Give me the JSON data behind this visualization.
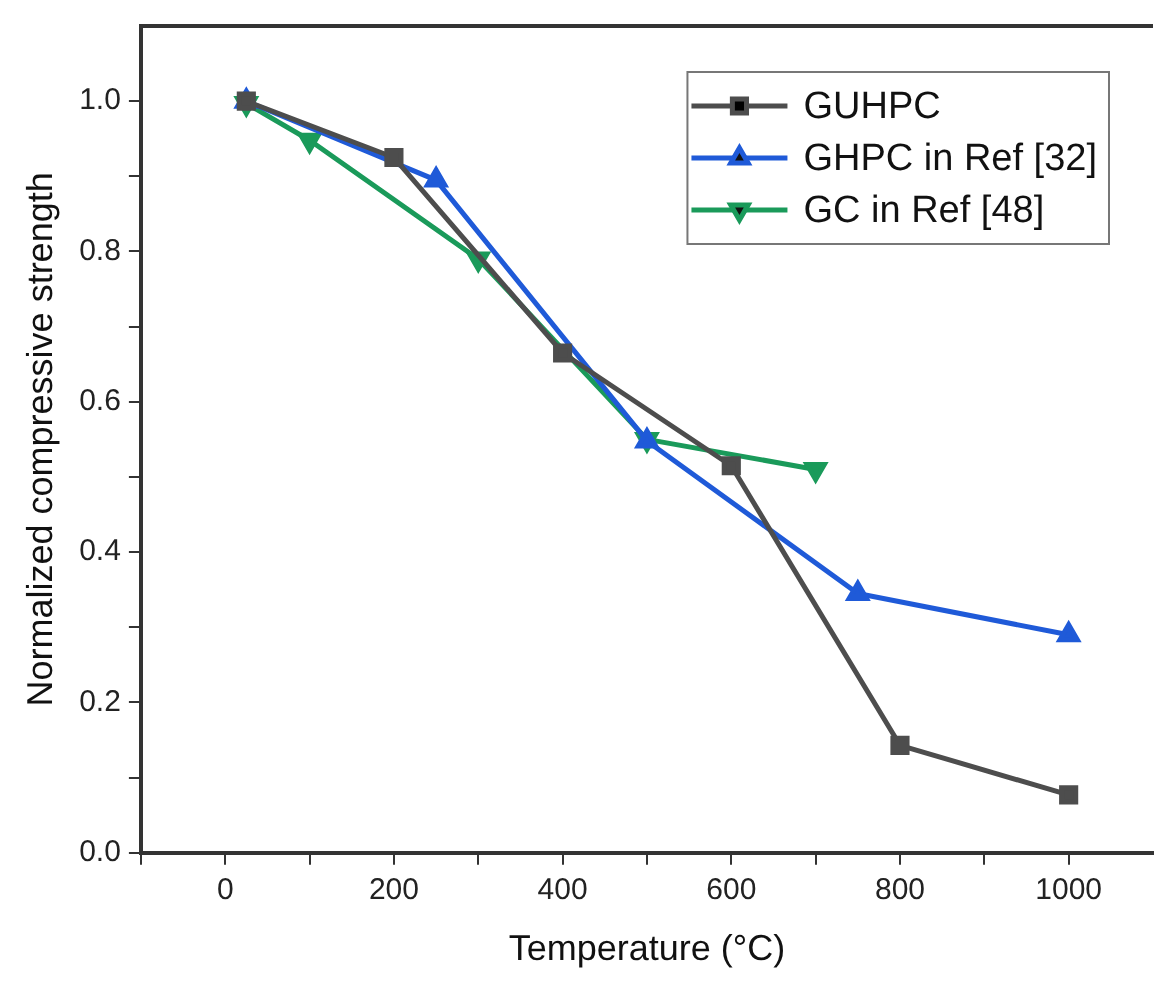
{
  "chart_data": {
    "type": "line",
    "xlabel": "Temperature (°C)",
    "ylabel": "Normalized compressive strength",
    "xlim": [
      -100,
      1100
    ],
    "ylim": [
      0,
      1.1
    ],
    "xticks": [
      {
        "value": -100,
        "label": null
      },
      0,
      {
        "value": 100,
        "label": null
      },
      200,
      {
        "value": 300,
        "label": null
      },
      400,
      {
        "value": 500,
        "label": null
      },
      600,
      {
        "value": 700,
        "label": null
      },
      800,
      {
        "value": 900,
        "label": null
      },
      1000
    ],
    "yticks": [
      "0.0",
      {
        "value": 0.1,
        "label": null
      },
      0.2,
      {
        "value": 0.3,
        "label": null
      },
      0.4,
      {
        "value": 0.5,
        "label": null
      },
      0.6,
      {
        "value": 0.7,
        "label": null
      },
      0.8,
      {
        "value": 0.9,
        "label": null
      },
      {
        "value": 1,
        "label": "1.0"
      }
    ],
    "grid": false,
    "legend": "top right",
    "line_style": "solid",
    "series": [
      {
        "name": "GUHPC",
        "color": "#4d4d4d",
        "marker": "square",
        "x": [
          25,
          200,
          400,
          600,
          800,
          1000
        ],
        "values": [
          1.0,
          0.925,
          0.665,
          0.515,
          0.143,
          0.077
        ]
      },
      {
        "name": "GHPC in Ref [32]",
        "color": "#1f5ad8",
        "marker": "triangle",
        "x": [
          25,
          250,
          500,
          750,
          1000
        ],
        "values": [
          1.0,
          0.895,
          0.548,
          0.345,
          0.29
        ]
      },
      {
        "name": "GC in Ref [48]",
        "color": "#1a9a5a",
        "marker": "triangle-down",
        "x": [
          25,
          100,
          300,
          500,
          700
        ],
        "values": [
          0.997,
          0.948,
          0.79,
          0.55,
          0.51
        ]
      }
    ]
  }
}
